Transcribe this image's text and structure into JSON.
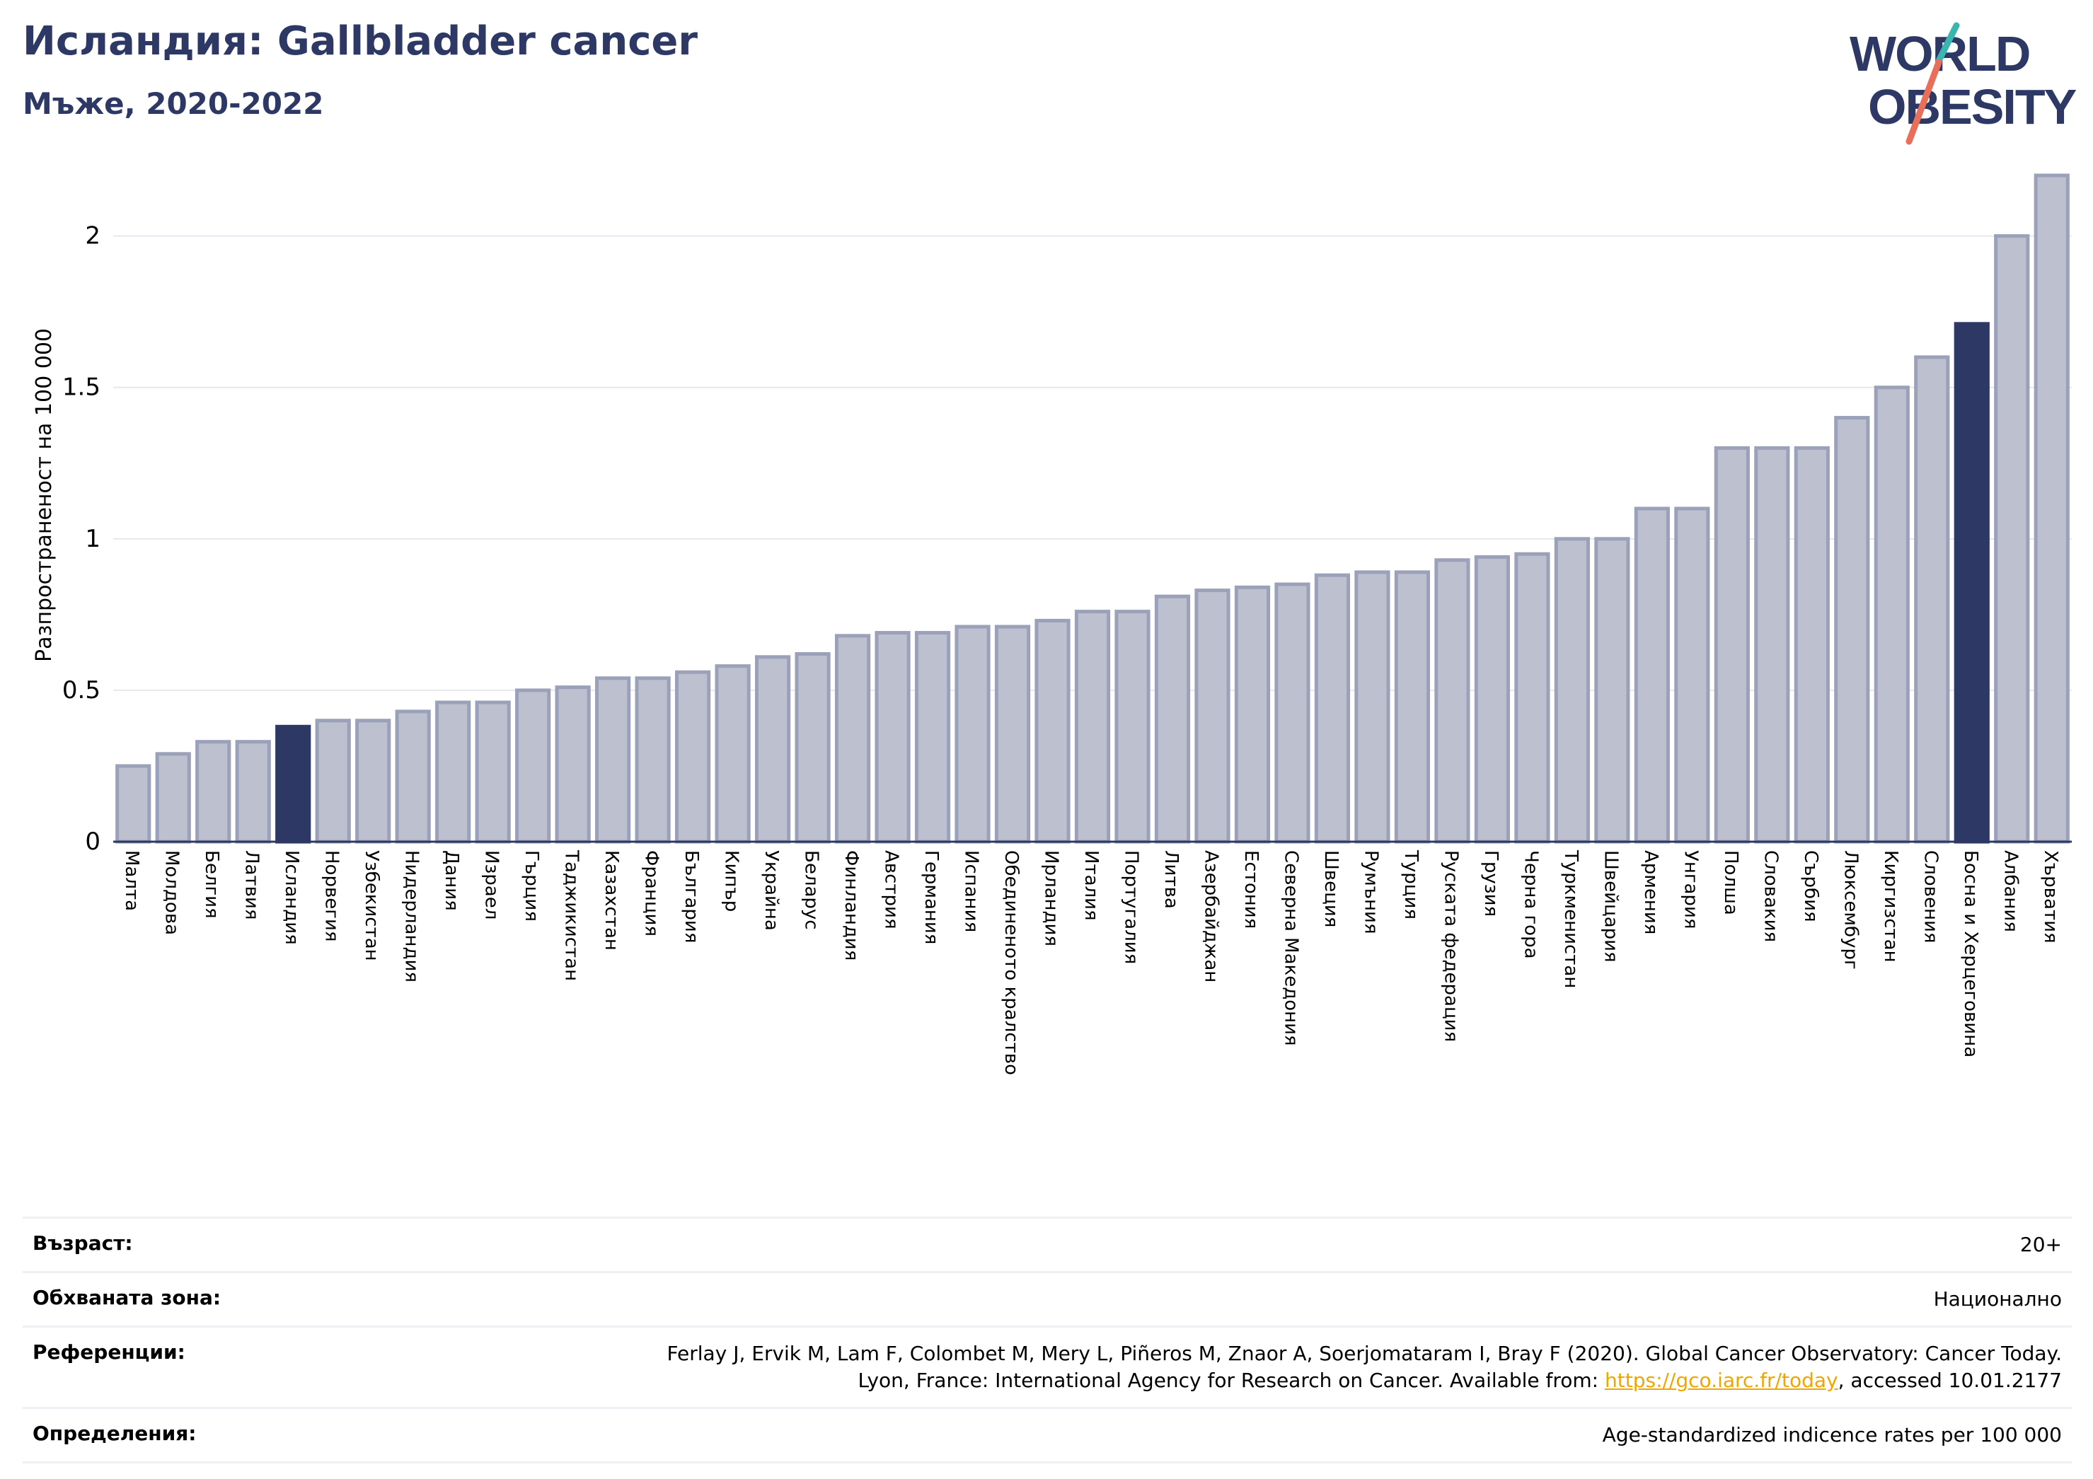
{
  "header": {
    "title": "Исландия: Gallbladder cancer",
    "subtitle": "Мъже, 2020-2022"
  },
  "logo": {
    "line1": "WORLD",
    "line2": "OBESITY"
  },
  "colors": {
    "bar_fill": "#bcc0cf",
    "bar_stroke": "#9ba1b8",
    "highlight": "#2d3865",
    "grid": "#e6e8ef",
    "logo_text": "#2d3865",
    "logo_teal": "#3ab5b0",
    "logo_red": "#e8705a",
    "link": "#f0a500"
  },
  "chart_data": {
    "type": "bar",
    "title": "Исландия: Gallbladder cancer",
    "subtitle": "Мъже, 2020-2022",
    "ylabel": "Разпространеност  на 100 000",
    "xlabel": "",
    "ylim": [
      0,
      2.2
    ],
    "yticks": [
      0,
      0.5,
      1,
      1.5,
      2
    ],
    "ytick_labels": [
      "0",
      "0.5",
      "1",
      "1.5",
      "2"
    ],
    "grid": true,
    "categories": [
      "Малта",
      "Молдова",
      "Белгия",
      "Латвия",
      "Исландия",
      "Норвегия",
      "Узбекистан",
      "Нидерландия",
      "Дания",
      "Израел",
      "Гърция",
      "Таджикистан",
      "Казахстан",
      "Франция",
      "България",
      "Кипър",
      "Украйна",
      "Беларус",
      "Финландия",
      "Австрия",
      "Германия",
      "Испания",
      "Обединеното кралство",
      "Ирландия",
      "Италия",
      "Португалия",
      "Литва",
      "Азербайджан",
      "Естония",
      "Северна Македония",
      "Швеция",
      "Румъния",
      "Турция",
      "Руската федерация",
      "Грузия",
      "Черна гора",
      "Туркменистан",
      "Швейцария",
      "Армения",
      "Унгария",
      "Полша",
      "Словакия",
      "Сърбия",
      "Люксембург",
      "Киргизстан",
      "Словения",
      "Босна и Херцеговина",
      "Албания",
      "Хърватия"
    ],
    "values": [
      0.25,
      0.29,
      0.33,
      0.33,
      0.38,
      0.4,
      0.4,
      0.43,
      0.46,
      0.46,
      0.5,
      0.51,
      0.54,
      0.54,
      0.56,
      0.58,
      0.61,
      0.62,
      0.68,
      0.69,
      0.69,
      0.71,
      0.71,
      0.73,
      0.76,
      0.76,
      0.81,
      0.83,
      0.84,
      0.85,
      0.88,
      0.89,
      0.89,
      0.93,
      0.94,
      0.95,
      1.0,
      1.0,
      1.1,
      1.1,
      1.3,
      1.3,
      1.3,
      1.4,
      1.5,
      1.6,
      1.71,
      2.0,
      2.2
    ],
    "highlighted": [
      "Исландия",
      "Босна и Херцеговина"
    ]
  },
  "info": {
    "age_label": "Възраст:",
    "age_value": "20+",
    "area_label": "Обхваната зона:",
    "area_value": "Национално",
    "refs_label": "Референции:",
    "refs_line1": "Ferlay J, Ervik M, Lam F, Colombet M, Mery L, Piñeros M, Znaor A, Soerjomataram I, Bray F (2020). Global Cancer Observatory: Cancer Today.",
    "refs_line2_prefix": "Lyon, France: International Agency for Research on Cancer. Available from: ",
    "refs_link": "https://gco.iarc.fr/today",
    "refs_line2_suffix": ", accessed 10.01.2177",
    "defs_label": "Определения:",
    "defs_value": "Age-standardized indicence rates per 100 000"
  }
}
